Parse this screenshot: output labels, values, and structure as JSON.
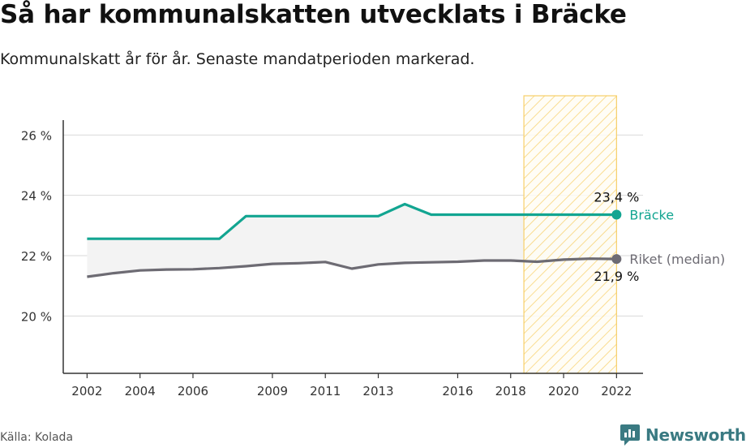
{
  "title": "Så har kommunalskatten utvecklats i Bräcke",
  "subtitle": "Kommunalskatt år för år. Senaste mandatperioden markerad.",
  "source": "Källa: Kolada",
  "brand": "Newsworthy",
  "colors": {
    "bracke": "#12a591",
    "riket": "#6d6b73",
    "highlight_fill": "#fde6a3",
    "highlight_stroke": "#f7cf69",
    "band_fill": "#f3f3f3",
    "brand": "#3a7a82"
  },
  "chart_data": {
    "type": "line",
    "x": [
      2002,
      2003,
      2004,
      2005,
      2006,
      2007,
      2008,
      2009,
      2010,
      2011,
      2012,
      2013,
      2014,
      2015,
      2016,
      2017,
      2018,
      2019,
      2020,
      2021,
      2022
    ],
    "x_ticks": [
      2002,
      2004,
      2006,
      2009,
      2011,
      2013,
      2016,
      2018,
      2020,
      2022
    ],
    "y_ticks": [
      20,
      22,
      24,
      26
    ],
    "y_tick_labels": [
      "20 %",
      "22 %",
      "24 %",
      "26 %"
    ],
    "ylim": [
      18.1,
      27.3
    ],
    "xlim": [
      2001.1,
      2023.0
    ],
    "grid": "horizontal",
    "highlight_period": [
      2018.5,
      2022
    ],
    "series": [
      {
        "name": "Bräcke",
        "values": [
          22.56,
          22.56,
          22.56,
          22.56,
          22.56,
          22.56,
          23.31,
          23.31,
          23.31,
          23.31,
          23.31,
          23.31,
          23.71,
          23.36,
          23.36,
          23.36,
          23.36,
          23.36,
          23.36,
          23.36,
          23.36
        ],
        "end_label": "23,4 %"
      },
      {
        "name": "Riket (median)",
        "values": [
          21.3,
          21.42,
          21.51,
          21.54,
          21.55,
          21.59,
          21.65,
          21.73,
          21.75,
          21.79,
          21.57,
          21.71,
          21.76,
          21.78,
          21.8,
          21.84,
          21.84,
          21.8,
          21.87,
          21.9,
          21.89
        ],
        "end_label": "21,9 %"
      }
    ]
  }
}
